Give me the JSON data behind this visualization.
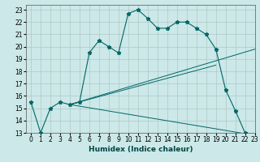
{
  "title": "",
  "xlabel": "Humidex (Indice chaleur)",
  "bg_color": "#cce8e8",
  "line_color": "#006666",
  "grid_color": "#b0c8c8",
  "xlim": [
    -0.5,
    23
  ],
  "ylim": [
    13,
    23.4
  ],
  "xticks": [
    0,
    1,
    2,
    3,
    4,
    5,
    6,
    7,
    8,
    9,
    10,
    11,
    12,
    13,
    14,
    15,
    16,
    17,
    18,
    19,
    20,
    21,
    22,
    23
  ],
  "yticks": [
    13,
    14,
    15,
    16,
    17,
    18,
    19,
    20,
    21,
    22,
    23
  ],
  "curve_x": [
    0,
    1,
    2,
    3,
    4,
    5,
    6,
    7,
    8,
    9,
    10,
    11,
    12,
    13,
    14,
    15,
    16,
    17,
    18,
    19,
    20,
    21,
    22,
    23
  ],
  "curve_y": [
    15.5,
    13.0,
    15.0,
    15.5,
    15.3,
    15.5,
    19.5,
    20.5,
    20.0,
    19.5,
    22.7,
    23.0,
    22.3,
    21.5,
    21.5,
    22.0,
    22.0,
    21.5,
    21.0,
    19.8,
    16.5,
    14.8,
    13.0,
    12.8
  ],
  "line1_x": [
    4,
    19
  ],
  "line1_y": [
    15.3,
    18.5
  ],
  "line2_x": [
    4,
    23
  ],
  "line2_y": [
    15.3,
    19.8
  ],
  "line3_x": [
    4,
    23
  ],
  "line3_y": [
    15.3,
    12.8
  ],
  "xlabel_fontsize": 6.5,
  "tick_fontsize": 5.5
}
